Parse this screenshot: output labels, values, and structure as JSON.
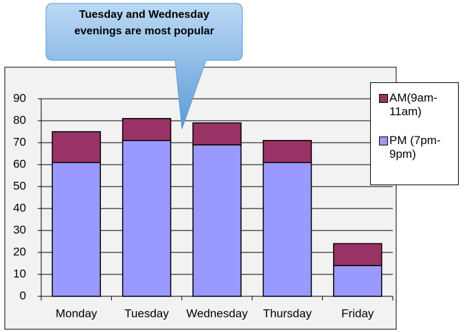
{
  "chart_data": {
    "type": "stacked_bar",
    "annotation": "Tuesday and Wednesday evenings are most popular",
    "categories": [
      "Monday",
      "Tuesday",
      "Wednesday",
      "Thursday",
      "Friday"
    ],
    "series": [
      {
        "name": "PM (7pm-9pm)",
        "color": "#9999ff",
        "values": [
          61,
          71,
          69,
          61,
          14
        ]
      },
      {
        "name": "AM(9am-11am)",
        "color": "#993366",
        "values": [
          14,
          10,
          10,
          10,
          10
        ]
      }
    ],
    "ylim": [
      0,
      90
    ],
    "yticks": [
      0,
      10,
      20,
      30,
      40,
      50,
      60,
      70,
      80,
      90
    ],
    "grid": true,
    "legend": "right"
  }
}
